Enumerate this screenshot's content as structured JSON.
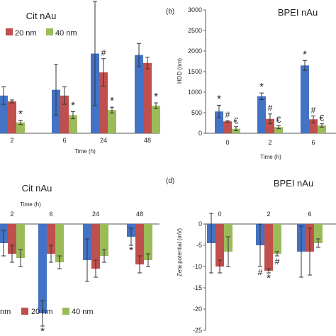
{
  "chart_data": [
    {
      "panel": "a",
      "panel_letter": "",
      "type": "bar",
      "title": "Cit nAu",
      "xlabel": "Time (h)",
      "ylabel": "",
      "categories": [
        "2",
        "6",
        "24",
        "48"
      ],
      "ylim": [
        0,
        1800
      ],
      "yticks": [],
      "grid": false,
      "legend_position": "top-left",
      "series": [
        {
          "name": "",
          "color": "#4472C4",
          "values": [
            520,
            600,
            1100,
            1080
          ],
          "errors": [
            120,
            350,
            720,
            160
          ]
        },
        {
          "name": "20 nm",
          "color": "#C0504D",
          "values": [
            440,
            520,
            840,
            970
          ],
          "errors": [
            20,
            120,
            190,
            80
          ]
        },
        {
          "name": "40 nm",
          "color": "#9BBB59",
          "values": [
            150,
            250,
            320,
            380
          ],
          "errors": [
            30,
            50,
            40,
            40
          ]
        }
      ],
      "annotations": [
        {
          "category": 0,
          "series": 2,
          "symbol": "*"
        },
        {
          "category": 1,
          "series": 2,
          "symbol": "*"
        },
        {
          "category": 2,
          "series": 1,
          "symbol": "#"
        },
        {
          "category": 2,
          "series": 2,
          "symbol": "*"
        },
        {
          "category": 3,
          "series": 2,
          "symbol": "*"
        }
      ]
    },
    {
      "panel": "b",
      "panel_letter": "(b)",
      "type": "bar",
      "title": "BPEI nAu",
      "xlabel": "Time (h)",
      "ylabel": "HDD (nm)",
      "categories": [
        "0",
        "2",
        "6"
      ],
      "ylim": [
        0,
        3000
      ],
      "yticks": [
        0,
        500,
        1000,
        1500,
        2000,
        2500,
        3000
      ],
      "grid": false,
      "series": [
        {
          "name": "",
          "color": "#4472C4",
          "values": [
            530,
            900,
            1650
          ],
          "errors": [
            150,
            80,
            120
          ]
        },
        {
          "name": "",
          "color": "#C0504D",
          "values": [
            290,
            350,
            340
          ],
          "errors": [
            20,
            120,
            80
          ]
        },
        {
          "name": "",
          "color": "#9BBB59",
          "values": [
            110,
            150,
            190
          ],
          "errors": [
            50,
            40,
            40
          ]
        }
      ],
      "annotations": [
        {
          "category": 0,
          "series": 0,
          "symbol": "*"
        },
        {
          "category": 0,
          "series": 1,
          "symbol": "#"
        },
        {
          "category": 0,
          "series": 2,
          "symbol": "€"
        },
        {
          "category": 1,
          "series": 0,
          "symbol": "*"
        },
        {
          "category": 1,
          "series": 1,
          "symbol": "#"
        },
        {
          "category": 1,
          "series": 2,
          "symbol": "€"
        },
        {
          "category": 2,
          "series": 0,
          "symbol": "*"
        },
        {
          "category": 2,
          "series": 1,
          "symbol": "#"
        },
        {
          "category": 2,
          "series": 2,
          "symbol": "€"
        }
      ]
    },
    {
      "panel": "c",
      "panel_letter": "",
      "type": "bar",
      "title": "Cit nAu",
      "xlabel": "Time (h)",
      "ylabel": "",
      "categories": [
        "2",
        "6",
        "24",
        "48"
      ],
      "ylim": [
        -25,
        0
      ],
      "yticks": [],
      "grid": false,
      "legend_position": "bottom",
      "series": [
        {
          "name": "nm",
          "color": "#4472C4",
          "values": [
            -4.5,
            -21,
            -8.5,
            -3
          ],
          "errors": [
            3,
            3,
            5,
            2
          ]
        },
        {
          "name": "20 nm",
          "color": "#C0504D",
          "values": [
            -7,
            -7,
            -10.5,
            -9.5
          ],
          "errors": [
            2,
            2,
            2,
            2
          ]
        },
        {
          "name": "40 nm",
          "color": "#9BBB59",
          "values": [
            -8,
            -9,
            -7.5,
            -8.5
          ],
          "errors": [
            2,
            1.5,
            1.5,
            1.5
          ]
        }
      ],
      "annotations": [
        {
          "category": 1,
          "series": 0,
          "symbol": "*"
        },
        {
          "category": 3,
          "series": 0,
          "symbol": "*"
        }
      ]
    },
    {
      "panel": "d",
      "panel_letter": "(d)",
      "type": "bar",
      "title": "BPEI nAu",
      "xlabel": "",
      "ylabel": "Zeta potential (mV)",
      "categories": [
        "0",
        "2",
        "6"
      ],
      "ylim": [
        -25,
        0
      ],
      "yticks": [
        0,
        -5,
        -10,
        -15,
        -20,
        -25
      ],
      "grid": false,
      "series": [
        {
          "name": "",
          "color": "#4472C4",
          "values": [
            -4.5,
            -5,
            -6.5
          ],
          "errors": [
            7,
            5,
            6
          ]
        },
        {
          "name": "",
          "color": "#C0504D",
          "values": [
            -10,
            -11,
            -6.5
          ],
          "errors": [
            1.5,
            0.5,
            5.5
          ]
        },
        {
          "name": "",
          "color": "#9BBB59",
          "values": [
            -6.5,
            -7,
            -4.5
          ],
          "errors": [
            3.5,
            0.5,
            1
          ]
        }
      ],
      "annotations": [
        {
          "category": 1,
          "series": 0,
          "symbol": "#"
        },
        {
          "category": 1,
          "series": 1,
          "symbol": "*"
        },
        {
          "category": 1,
          "series": 2,
          "symbol": "#"
        }
      ]
    }
  ]
}
